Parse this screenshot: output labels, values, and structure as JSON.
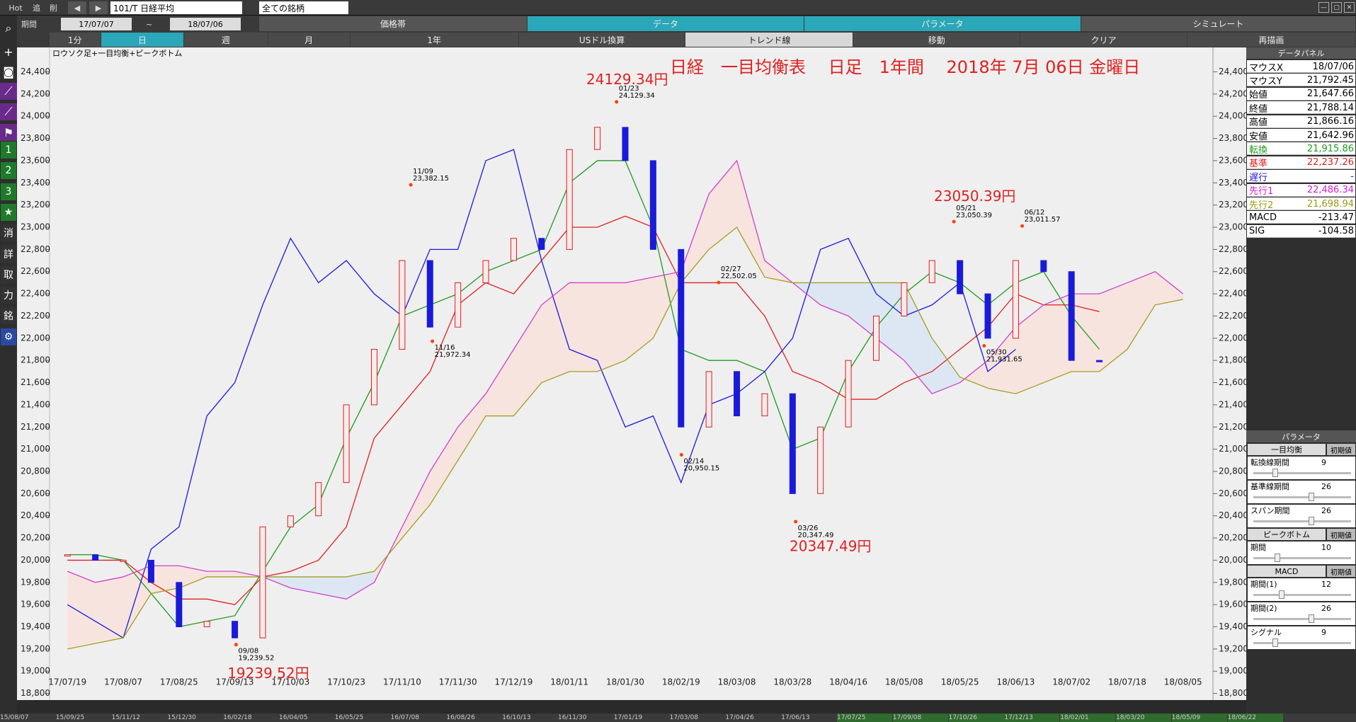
{
  "toolbar": {
    "hot": "Hot",
    "add": "追",
    "del": "削",
    "symbol": "101/T 日経平均",
    "universe": "全ての銘柄",
    "period_label": "期間",
    "from": "17/07/07",
    "tilde": "~",
    "to": "18/07/06",
    "tabs": [
      "価格帯",
      "データ",
      "パラメータ",
      "シミュレート"
    ],
    "buttons": [
      "1分",
      "日",
      "週",
      "月",
      "1年",
      "USドル換算",
      "トレンド線",
      "移動",
      "クリア",
      "再描画"
    ]
  },
  "side_tools": [
    "1",
    "2",
    "3",
    "★",
    "消",
    "詳",
    "取",
    "力",
    "銘"
  ],
  "chart_data": {
    "type": "candlestick",
    "title": "日経　一目均衡表　 日足　1年間　 2018年 7月 06日 金曜日",
    "subtitle": "ロウソク足+一目均衡+ピークボトム",
    "categories": [
      "17/07/19",
      null,
      "17/08/07",
      null,
      "17/08/25",
      null,
      "17/09/13",
      null,
      "17/10/03",
      null,
      "17/10/23",
      null,
      "17/11/10",
      null,
      "17/11/30",
      null,
      "17/12/19",
      null,
      "18/01/11",
      null,
      "18/01/30",
      null,
      "18/02/19",
      null,
      "18/03/08",
      null,
      "18/03/28",
      null,
      "18/04/16",
      null,
      "18/05/08",
      null,
      "18/05/25",
      null,
      "18/06/13",
      null,
      "18/07/02",
      null,
      "18/07/18",
      null,
      "18/08/05"
    ],
    "candles": {
      "up_color": "#d62020",
      "down_color": "#1a1adb",
      "values": [
        20050,
        20000,
        20000,
        19800,
        19400,
        19450,
        19300,
        20300,
        20400,
        20700,
        21400,
        21900,
        22700,
        22100,
        22500,
        22700,
        22900,
        22800,
        23700,
        23900,
        23600,
        22800,
        21200,
        21700,
        21300,
        21500,
        20600,
        21200,
        21800,
        22200,
        22500,
        22700,
        22400,
        22000,
        22700,
        22600,
        21800,
        21790,
        null,
        null,
        null
      ]
    },
    "series": [
      {
        "color": "#1f9a1f",
        "values": [
          20050,
          20050,
          20000,
          19700,
          19400,
          19450,
          19500,
          19900,
          20300,
          20500,
          21100,
          21600,
          22200,
          22300,
          22400,
          22600,
          22700,
          22800,
          23400,
          23600,
          23600,
          23000,
          21900,
          21800,
          21800,
          21700,
          21000,
          21100,
          21700,
          22100,
          22400,
          22600,
          22500,
          22300,
          22500,
          22600,
          22200,
          21900,
          null,
          null,
          null
        ]
      },
      {
        "color": "#e02020",
        "values": [
          20000,
          20000,
          20000,
          19800,
          19650,
          19650,
          19600,
          19850,
          19900,
          20000,
          20300,
          21100,
          21400,
          21700,
          22300,
          22500,
          22400,
          22700,
          23000,
          23000,
          23100,
          23000,
          22500,
          22500,
          22500,
          22200,
          21700,
          21600,
          21450,
          21450,
          21600,
          21700,
          21900,
          22100,
          22400,
          22300,
          22300,
          22240,
          null,
          null,
          null
        ]
      },
      {
        "color": "#1a1ae0",
        "values": [
          19600,
          19450,
          19300,
          20100,
          20300,
          21300,
          21600,
          22300,
          22900,
          22500,
          22700,
          22400,
          22200,
          22800,
          22800,
          23600,
          23700,
          22700,
          21900,
          21800,
          21200,
          21300,
          20700,
          21400,
          21500,
          21700,
          22000,
          22800,
          22900,
          22400,
          22200,
          22300,
          22500,
          21700,
          21900,
          null,
          null,
          null,
          null,
          null,
          null
        ]
      },
      {
        "color": "#d040d0",
        "values": [
          19900,
          19800,
          19850,
          19950,
          19950,
          19900,
          19900,
          19850,
          19750,
          19700,
          19650,
          19800,
          20300,
          20800,
          21200,
          21500,
          21900,
          22300,
          22500,
          22500,
          22500,
          22550,
          22600,
          23300,
          23600,
          22700,
          22500,
          22300,
          22200,
          22000,
          21800,
          21500,
          21600,
          21800,
          22100,
          22300,
          22400,
          22400,
          22500,
          22600,
          22400
        ]
      },
      {
        "color": "#a0a020",
        "values": [
          19200,
          19250,
          19300,
          19700,
          19750,
          19850,
          19850,
          19850,
          19850,
          19850,
          19850,
          19900,
          20200,
          20500,
          20900,
          21300,
          21300,
          21600,
          21700,
          21700,
          21800,
          22000,
          22500,
          22800,
          23000,
          22550,
          22500,
          22500,
          22500,
          22500,
          22500,
          22000,
          21650,
          21550,
          21500,
          21600,
          21700,
          21700,
          21900,
          22300,
          22350
        ]
      }
    ],
    "cloud_colors": [
      "#f7e4df",
      "#dde7f3"
    ],
    "ylim": [
      18740,
      24620
    ],
    "yticks": [
      {
        "value": 18800,
        "label": "18,800"
      },
      {
        "value": 19000,
        "label": "19,000"
      },
      {
        "value": 19200,
        "label": "19,200"
      },
      {
        "value": 19400,
        "label": "19,400"
      },
      {
        "value": 19600,
        "label": "19,600"
      },
      {
        "value": 19800,
        "label": "19,800"
      },
      {
        "value": 20000,
        "label": "20,000"
      },
      {
        "value": 20200,
        "label": "20,200"
      },
      {
        "value": 20400,
        "label": "20,400"
      },
      {
        "value": 20600,
        "label": "20,600"
      },
      {
        "value": 20800,
        "label": "20,800"
      },
      {
        "value": 21000,
        "label": "21,000"
      },
      {
        "value": 21200,
        "label": "21,200"
      },
      {
        "value": 21400,
        "label": "21,400"
      },
      {
        "value": 21600,
        "label": "21,600"
      },
      {
        "value": 21800,
        "label": "21,800"
      },
      {
        "value": 22000,
        "label": "22,000"
      },
      {
        "value": 22200,
        "label": "22,200"
      },
      {
        "value": 22400,
        "label": "22,400"
      },
      {
        "value": 22600,
        "label": "22,600"
      },
      {
        "value": 22800,
        "label": "22,800"
      },
      {
        "value": 23000,
        "label": "23,000"
      },
      {
        "value": 23200,
        "label": "23,200"
      },
      {
        "value": 23400,
        "label": "23,400"
      },
      {
        "value": 23600,
        "label": "23,600"
      },
      {
        "value": 23800,
        "label": "23,800"
      },
      {
        "value": 24000,
        "label": "24,000"
      },
      {
        "value": 24200,
        "label": "24,200"
      },
      {
        "value": 24400,
        "label": "24,400"
      }
    ],
    "annotations": [
      {
        "date": "09/08",
        "value": 19239.52,
        "value_label": "19,239.52",
        "callout": "19239.52円"
      },
      {
        "date": "11/09",
        "value": 23382.15,
        "value_label": "23,382.15"
      },
      {
        "date": "11/16",
        "value": 21972.34,
        "value_label": "21,972.34"
      },
      {
        "date": "01/23",
        "value": 24129.34,
        "value_label": "24,129.34",
        "callout": "24129.34円"
      },
      {
        "date": "02/14",
        "value": 20950.15,
        "value_label": "20,950.15"
      },
      {
        "date": "02/27",
        "value": 22502.05,
        "value_label": "22,502.05"
      },
      {
        "date": "03/26",
        "value": 20347.49,
        "value_label": "20,347.49",
        "callout": "20347.49円"
      },
      {
        "date": "05/21",
        "value": 23050.39,
        "value_label": "23,050.39",
        "callout": "23050.39円"
      },
      {
        "date": "05/30",
        "value": 21931.65,
        "value_label": "21,931.65"
      },
      {
        "date": "06/12",
        "value": 23011.57,
        "value_label": "23,011.57"
      }
    ]
  },
  "data_panel": {
    "title": "データパネル",
    "rows": [
      [
        "マウスX",
        "18/07/06"
      ],
      [
        "マウスY",
        "21,792.45"
      ],
      [
        "始値",
        "21,647.66"
      ],
      [
        "終値",
        "21,788.14"
      ],
      [
        "高値",
        "21,866.16"
      ],
      [
        "安値",
        "21,642.96"
      ],
      [
        "転換",
        "21,915.86"
      ],
      [
        "基準",
        "22,237.26"
      ],
      [
        "遅行",
        "-"
      ],
      [
        "先行1",
        "22,486.34"
      ],
      [
        "先行2",
        "21,698.94"
      ],
      [
        "MACD",
        "-213.47"
      ],
      [
        "SIG",
        "-104.58"
      ]
    ]
  },
  "params": {
    "title": "パラメータ",
    "groups": [
      {
        "name": "一目均衡",
        "reset": "初期値",
        "items": [
          [
            "転換線期間",
            9
          ],
          [
            "基準線期間",
            26
          ],
          [
            "スパン期間",
            26
          ]
        ]
      },
      {
        "name": "ピークボトム",
        "reset": "初期値",
        "items": [
          [
            "期間",
            10
          ]
        ]
      },
      {
        "name": "MACD",
        "reset": "初期値",
        "items": [
          [
            "期間(1)",
            12
          ],
          [
            "期間(2)",
            26
          ],
          [
            "シグナル",
            9
          ]
        ]
      }
    ]
  },
  "timeline": [
    "15/08/07",
    "15/09/25",
    "15/11/12",
    "15/12/30",
    "16/02/18",
    "16/04/05",
    "16/05/25",
    "16/07/08",
    "16/08/26",
    "16/10/13",
    "16/11/30",
    "17/01/19",
    "17/03/08",
    "17/04/26",
    "17/06/13",
    "17/07/25",
    "17/09/08",
    "17/10/26",
    "17/12/13",
    "18/02/01",
    "18/03/20",
    "18/05/09",
    "18/06/22"
  ]
}
